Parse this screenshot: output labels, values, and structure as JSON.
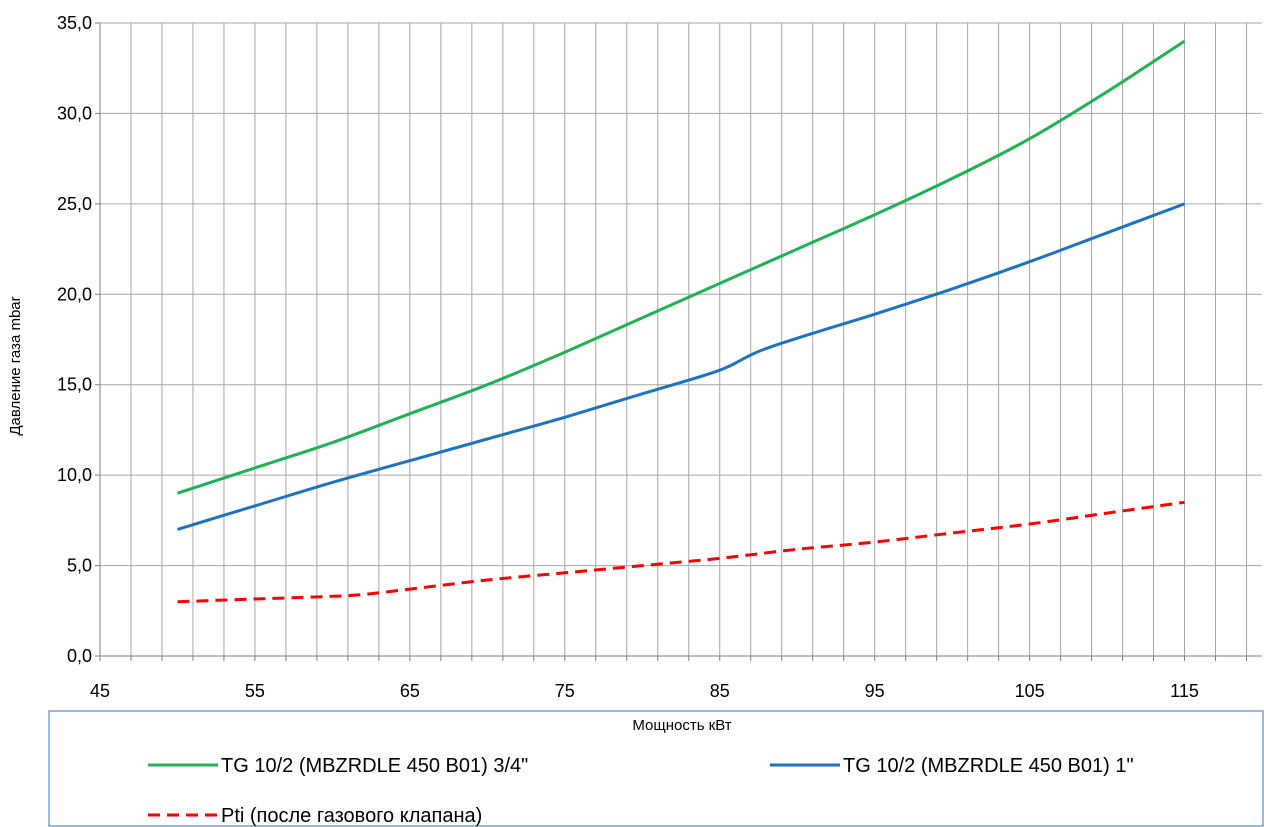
{
  "chart_data": {
    "type": "line",
    "title": "",
    "xlabel": "Мощность кВт",
    "ylabel": "Давление газа mbar",
    "xlim": [
      45,
      120
    ],
    "ylim": [
      0,
      35
    ],
    "x_ticks": [
      45,
      55,
      65,
      75,
      85,
      95,
      105,
      115
    ],
    "y_ticks": [
      "0,0",
      "5,0",
      "10,0",
      "15,0",
      "20,0",
      "25,0",
      "30,0",
      "35,0"
    ],
    "grid": true,
    "legend_position": "bottom",
    "series": [
      {
        "name": "TG 10/2 (MBZRDLE 450 B01) 3/4\"",
        "color": "#1fb254",
        "style": "solid",
        "x": [
          50,
          55,
          60,
          65,
          70,
          75,
          80,
          85,
          90,
          95,
          100,
          105,
          110,
          115
        ],
        "y": [
          9.0,
          10.4,
          11.8,
          13.4,
          15.0,
          16.8,
          18.7,
          20.6,
          22.5,
          24.4,
          26.4,
          28.6,
          31.2,
          34.0
        ]
      },
      {
        "name": "TG 10/2 (MBZRDLE 450 B01) 1\"",
        "color": "#1f72be",
        "style": "solid",
        "x": [
          50,
          55,
          60,
          65,
          70,
          75,
          80,
          85,
          88,
          95,
          100,
          105,
          110,
          115
        ],
        "y": [
          7.0,
          8.3,
          9.6,
          10.8,
          12.0,
          13.2,
          14.5,
          15.8,
          17.0,
          18.9,
          20.3,
          21.8,
          23.4,
          25.0
        ]
      },
      {
        "name": "Pti (после газового клапана)",
        "color": "#ff0000",
        "style": "dashed",
        "x": [
          50,
          55,
          60,
          62,
          65,
          70,
          75,
          80,
          85,
          90,
          95,
          100,
          105,
          110,
          115
        ],
        "y": [
          3.0,
          3.15,
          3.3,
          3.4,
          3.7,
          4.2,
          4.6,
          5.0,
          5.4,
          5.9,
          6.3,
          6.8,
          7.3,
          7.9,
          8.5
        ]
      }
    ]
  }
}
